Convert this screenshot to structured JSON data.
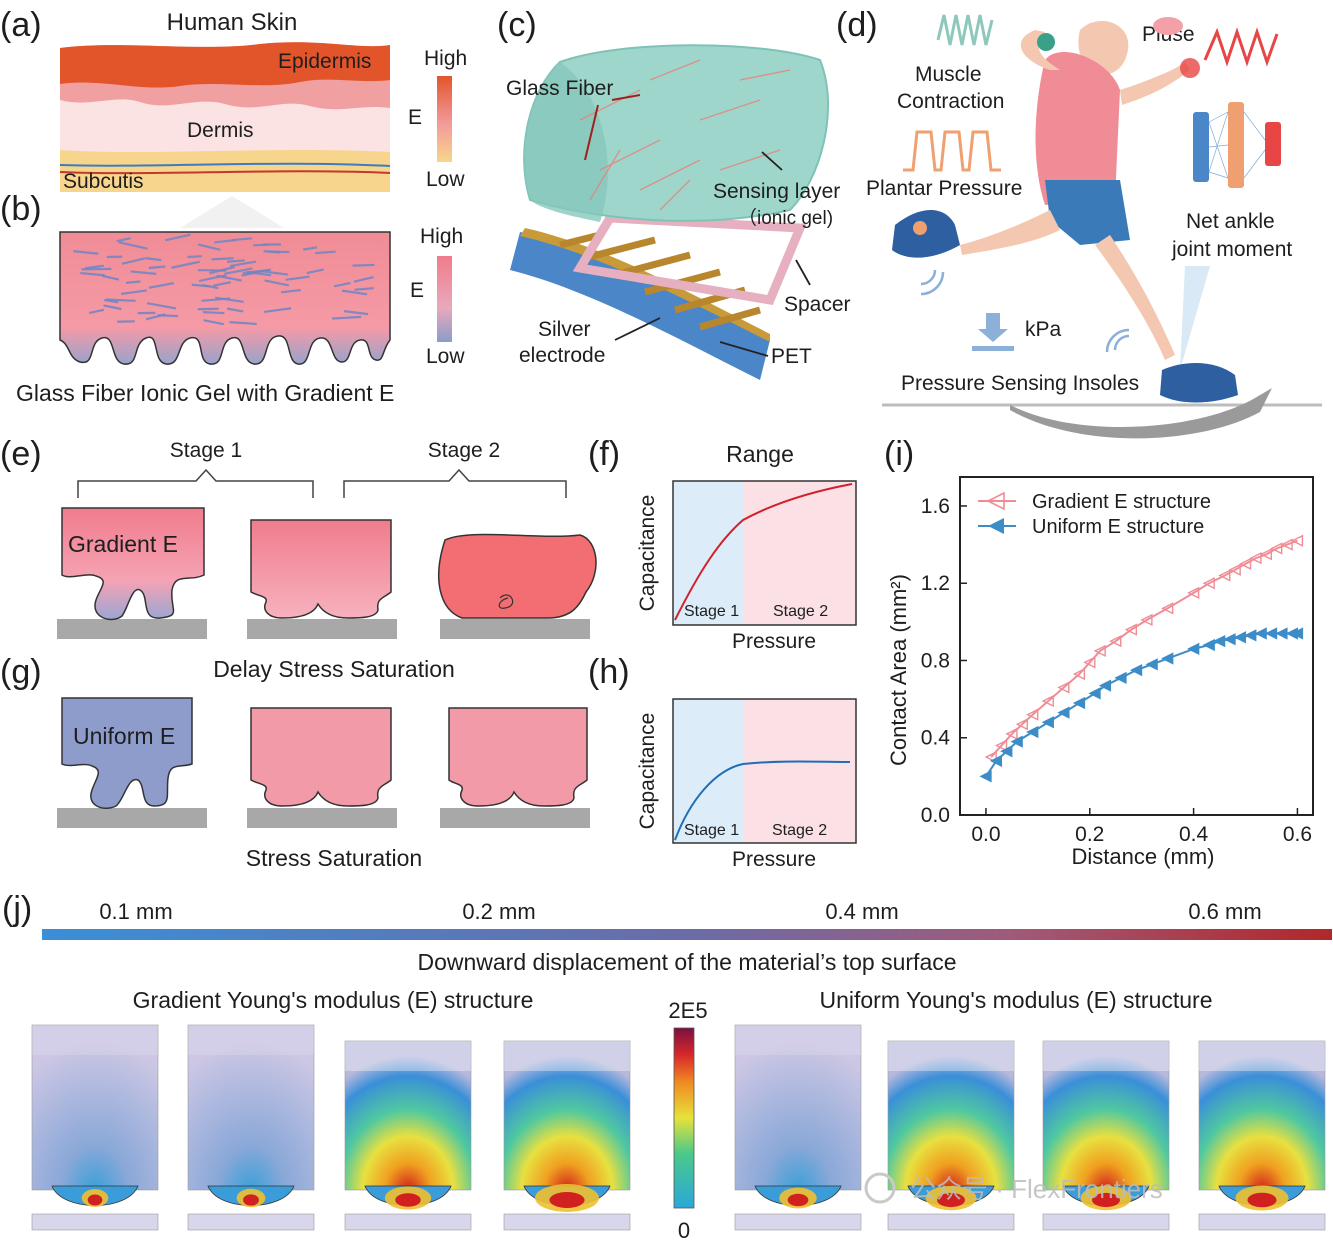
{
  "panel_labels": {
    "a": "(a)",
    "b": "(b)",
    "c": "(c)",
    "d": "(d)",
    "e": "(e)",
    "f": "(f)",
    "g": "(g)",
    "h": "(h)",
    "i": "(i)",
    "j": "(j)"
  },
  "panel_a": {
    "title": "Human Skin",
    "layers": [
      "Epidermis",
      "Dermis",
      "Subcutis"
    ],
    "scale_high": "High",
    "scale_axis": "E",
    "scale_low": "Low"
  },
  "panel_b": {
    "scale_high": "High",
    "scale_axis": "E",
    "scale_low": "Low",
    "caption": "Glass Fiber Ionic Gel with Gradient E"
  },
  "panel_c": {
    "glass_fiber": "Glass Fiber",
    "sensing_layer": "Sensing layer",
    "sensing_sub": "（ionic gel)",
    "spacer": "Spacer",
    "silver_1": "Silver",
    "silver_2": "electrode",
    "pet": "PET"
  },
  "panel_d": {
    "muscle_1": "Muscle",
    "muscle_2": "Contraction",
    "pulse": "Pluse",
    "plantar": "Plantar Pressure",
    "net_1": "Net ankle",
    "net_2": "joint moment",
    "kpa": "kPa",
    "insoles": "Pressure Sensing Insoles"
  },
  "panel_e": {
    "stage1": "Stage 1",
    "stage2": "Stage 2",
    "gradient": "Gradient E",
    "caption": "Delay Stress Saturation"
  },
  "panel_g": {
    "uniform": "Uniform E",
    "caption": "Stress Saturation"
  },
  "panel_f": {
    "title": "Range",
    "ylabel": "Capacitance",
    "xlabel": "Pressure",
    "stage1": "Stage 1",
    "stage2": "Stage 2"
  },
  "panel_h": {
    "ylabel": "Capacitance",
    "xlabel": "Pressure",
    "stage1": "Stage 1",
    "stage2": "Stage 2"
  },
  "chart_data": {
    "type": "line",
    "xlabel": "Distance (mm)",
    "ylabel": "Contact Area (mm²)",
    "xlim": [
      -0.05,
      0.63
    ],
    "ylim": [
      0.0,
      1.75
    ],
    "xticks": [
      "0.0",
      "0.2",
      "0.4",
      "0.6"
    ],
    "xtick_values": [
      0.0,
      0.2,
      0.4,
      0.6
    ],
    "yticks": [
      "0.0",
      "0.4",
      "0.8",
      "1.2",
      "1.6"
    ],
    "ytick_values": [
      0.0,
      0.4,
      0.8,
      1.2,
      1.6
    ],
    "series": [
      {
        "name": "Gradient E structure",
        "color": "#f08c96",
        "x": [
          0.01,
          0.03,
          0.05,
          0.07,
          0.09,
          0.12,
          0.15,
          0.18,
          0.2,
          0.22,
          0.25,
          0.28,
          0.31,
          0.35,
          0.4,
          0.43,
          0.46,
          0.48,
          0.5,
          0.52,
          0.54,
          0.56,
          0.58,
          0.6
        ],
        "y": [
          0.3,
          0.36,
          0.42,
          0.47,
          0.52,
          0.59,
          0.66,
          0.73,
          0.79,
          0.85,
          0.9,
          0.96,
          1.01,
          1.07,
          1.15,
          1.2,
          1.24,
          1.27,
          1.3,
          1.33,
          1.35,
          1.38,
          1.4,
          1.42
        ]
      },
      {
        "name": "Uniform  E structure",
        "color": "#3c8cc8",
        "x": [
          0.0,
          0.02,
          0.04,
          0.06,
          0.09,
          0.12,
          0.15,
          0.18,
          0.21,
          0.23,
          0.26,
          0.29,
          0.32,
          0.35,
          0.4,
          0.43,
          0.45,
          0.47,
          0.49,
          0.51,
          0.53,
          0.55,
          0.57,
          0.59,
          0.6
        ],
        "y": [
          0.2,
          0.28,
          0.33,
          0.38,
          0.43,
          0.48,
          0.53,
          0.58,
          0.63,
          0.67,
          0.71,
          0.75,
          0.78,
          0.81,
          0.86,
          0.88,
          0.9,
          0.91,
          0.92,
          0.93,
          0.94,
          0.94,
          0.94,
          0.94,
          0.94
        ]
      }
    ]
  },
  "panel_j": {
    "distances": [
      "0.1 mm",
      "0.2 mm",
      "0.4 mm",
      "0.6 mm"
    ],
    "bar_caption": "Downward displacement of the material’s top surface",
    "left_title": "Gradient Young's modulus (E) structure",
    "right_title": "Uniform  Young's modulus (E) structure",
    "cbar_max": "2E5",
    "cbar_min": "0",
    "watermark": "公众号 · FlexFrontiers"
  },
  "colors": {
    "blue": "#3c8cc8",
    "pink": "#f08c96",
    "red": "#c0392b",
    "gel": "#8ecfc4",
    "epidermis": "#e2552a"
  }
}
